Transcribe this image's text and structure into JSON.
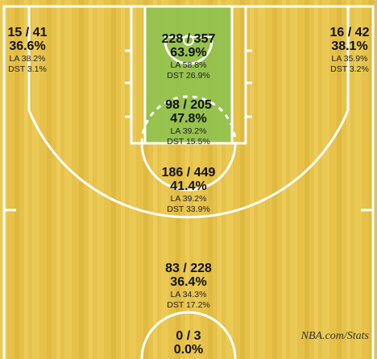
{
  "chart_data": {
    "type": "shot-chart",
    "colors": {
      "court_wood": "#e8c44a",
      "court_wood_dark": "#d9b33c",
      "paint_highlight": "#86c24e",
      "lines": "#ffffff"
    },
    "zones": [
      {
        "id": "left-corner-3",
        "made": 15,
        "attempts": 41,
        "fg_text": "15 / 41",
        "pct_text": "36.6%",
        "la_text": "LA 38.2%",
        "dst_text": "DST 3.1%"
      },
      {
        "id": "restricted-area",
        "made": 228,
        "attempts": 357,
        "fg_text": "228 / 357",
        "pct_text": "63.9%",
        "la_text": "LA 58.8%",
        "dst_text": "DST 26.9%"
      },
      {
        "id": "right-corner-3",
        "made": 16,
        "attempts": 42,
        "fg_text": "16 / 42",
        "pct_text": "38.1%",
        "la_text": "LA 35.9%",
        "dst_text": "DST 3.2%"
      },
      {
        "id": "in-the-paint",
        "made": 98,
        "attempts": 205,
        "fg_text": "98 / 205",
        "pct_text": "47.8%",
        "la_text": "LA 39.2%",
        "dst_text": "DST 15.5%"
      },
      {
        "id": "mid-range",
        "made": 186,
        "attempts": 449,
        "fg_text": "186 / 449",
        "pct_text": "41.4%",
        "la_text": "LA 39.2%",
        "dst_text": "DST 33.9%"
      },
      {
        "id": "above-break-3",
        "made": 83,
        "attempts": 228,
        "fg_text": "83 / 228",
        "pct_text": "36.4%",
        "la_text": "LA 34.3%",
        "dst_text": "DST 17.2%"
      },
      {
        "id": "backcourt",
        "made": 0,
        "attempts": 3,
        "fg_text": "0 / 3",
        "pct_text": "0.0%",
        "la_text": "",
        "dst_text": ""
      }
    ],
    "watermark": "NBA.com/Stats"
  }
}
